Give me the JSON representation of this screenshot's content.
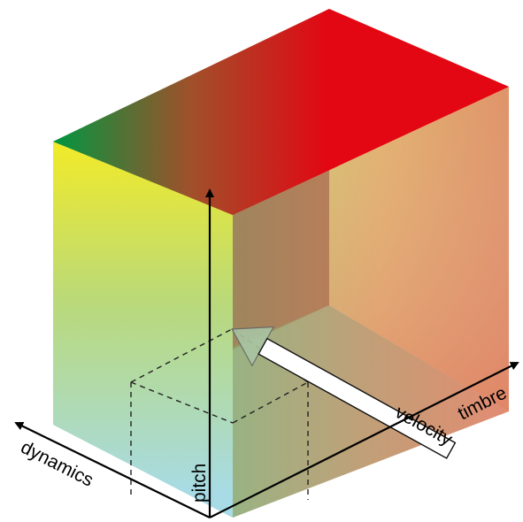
{
  "axes": {
    "pitch": "pitch",
    "dynamics": "dynamics",
    "timbre": "timbre"
  },
  "arrow_label": "velocity",
  "colors": {
    "top_left": "#009640",
    "top_right": "#e30613",
    "left_face_top": "#f0ea2a",
    "right_face_top": "#f6f08a",
    "front_floor_left": "#9fd7e6",
    "back_right": "#f2908a",
    "arrow_head": "#a8bfa4",
    "axis_lines": "#000000"
  }
}
